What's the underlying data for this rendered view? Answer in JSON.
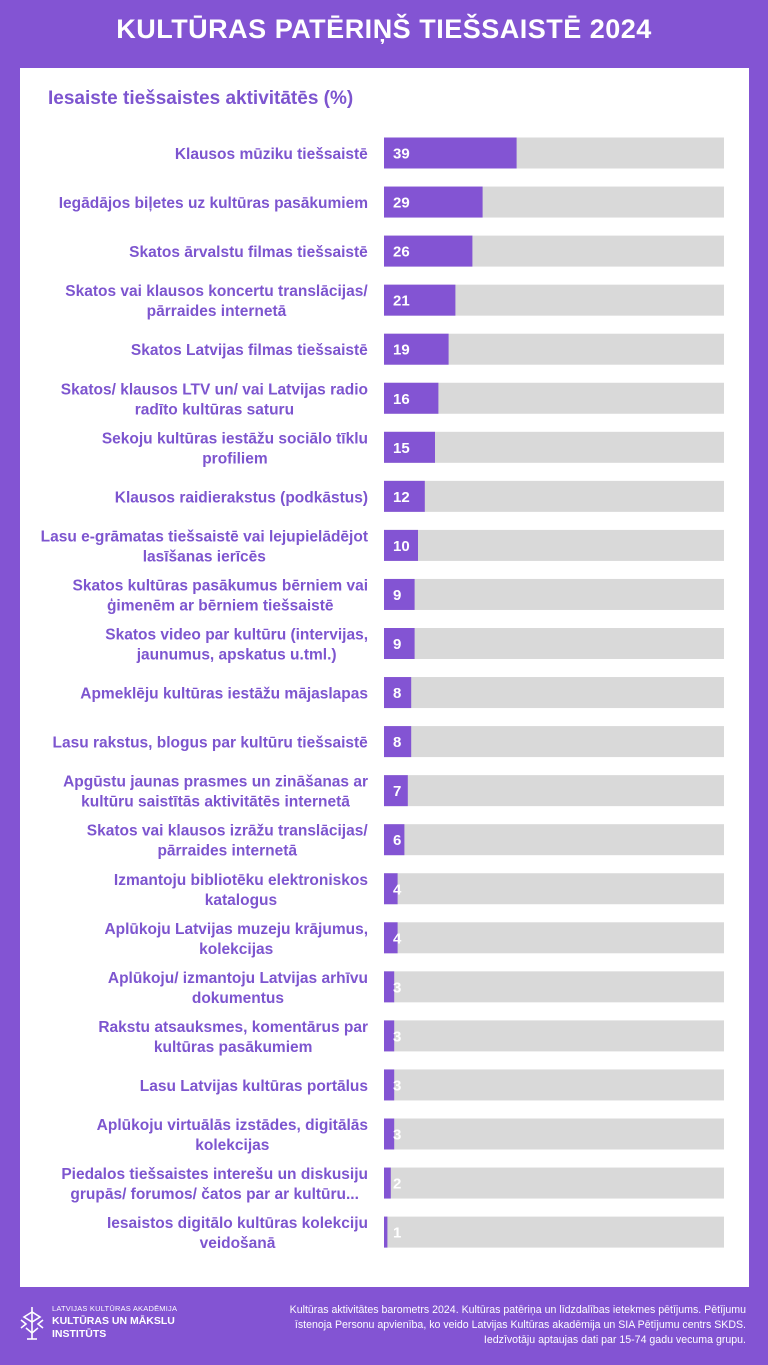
{
  "header": {
    "title": "KULTŪRAS PATĒRIŅŠ TIEŠSAISTĒ 2024"
  },
  "panel": {
    "subtitle": "Iesaiste tiešsaistes aktivitātēs (%)"
  },
  "colors": {
    "background": "#8354d3",
    "bar": "#8354d3",
    "track": "#d9d9d9",
    "label": "#7d55cf",
    "value": "#ffffff"
  },
  "chart_data": {
    "type": "bar",
    "orientation": "horizontal",
    "title": "Iesaiste tiešsaistes aktivitātēs (%)",
    "xlabel": "",
    "ylabel": "",
    "xlim": [
      0,
      100
    ],
    "categories": [
      [
        "Klausos mūziku tiešsaistē"
      ],
      [
        "Iegādājos biļetes uz kultūras pasākumiem"
      ],
      [
        "Skatos ārvalstu filmas tiešsaistē"
      ],
      [
        "Skatos vai klausos koncertu translācijas/",
        "pārraides internetā"
      ],
      [
        "Skatos Latvijas filmas tiešsaistē"
      ],
      [
        "Skatos/ klausos LTV un/ vai Latvijas radio",
        "radīto kultūras saturu"
      ],
      [
        "Sekoju kultūras iestāžu sociālo tīklu",
        "profiliem"
      ],
      [
        "Klausos raidierakstus (podkāstus)"
      ],
      [
        "Lasu e-grāmatas tiešsaistē vai lejupielādējot",
        "lasīšanas ierīcēs"
      ],
      [
        "Skatos kultūras pasākumus bērniem vai",
        "ģimenēm ar bērniem tiešsaistē"
      ],
      [
        "Skatos video par kultūru (intervijas,",
        "jaunumus, apskatus u.tml.)"
      ],
      [
        "Apmeklēju kultūras iestāžu mājaslapas"
      ],
      [
        "Lasu rakstus, blogus par kultūru tiešsaistē"
      ],
      [
        "Apgūstu jaunas prasmes un zināšanas ar",
        "kultūru saistītās aktivitātēs internetā"
      ],
      [
        "Skatos vai klausos izrāžu translācijas/",
        "pārraides internetā"
      ],
      [
        "Izmantoju bibliotēku elektroniskos",
        "katalogus"
      ],
      [
        "Aplūkoju Latvijas muzeju krājumus,",
        "kolekcijas"
      ],
      [
        "Aplūkoju/ izmantoju Latvijas arhīvu",
        "dokumentus"
      ],
      [
        "Rakstu atsauksmes, komentārus par",
        "kultūras pasākumiem"
      ],
      [
        "Lasu Latvijas kultūras portālus"
      ],
      [
        "Aplūkoju virtuālās izstādes, digitālās",
        "kolekcijas"
      ],
      [
        "Piedalos tiešsaistes interešu un diskusiju",
        "grupās/ forumos/ čatos par ar kultūru..."
      ],
      [
        "Iesaistos digitālo kultūras kolekciju",
        "veidošanā"
      ]
    ],
    "values": [
      39,
      29,
      26,
      21,
      19,
      16,
      15,
      12,
      10,
      9,
      9,
      8,
      8,
      7,
      6,
      4,
      4,
      3,
      3,
      3,
      3,
      2,
      1
    ]
  },
  "footer": {
    "logo_small": "LATVIJAS KULTŪRAS AKADĒMIJA",
    "logo_line1": "KULTŪRAS UN MĀKSLU",
    "logo_line2": "INSTITŪTS",
    "note_lines": [
      "Kultūras aktivitātes barometrs 2024. Kultūras patēriņa un līdzdalības ietekmes pētījums. Pētījumu",
      "īstenoja Personu apvienība, ko veido Latvijas Kultūras akadēmija un SIA Pētījumu centrs SKDS.",
      "Iedzīvotāju aptaujas dati par 15-74 gadu vecuma grupu."
    ]
  }
}
